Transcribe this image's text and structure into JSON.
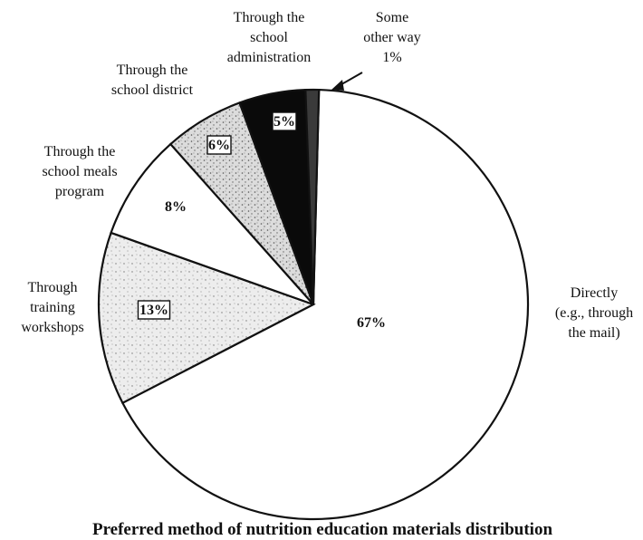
{
  "chart_data": {
    "type": "pie",
    "title": "Preferred method of nutrition education materials distribution",
    "slices": [
      {
        "label": [
          "Directly",
          "(e.g., through",
          "the mail)"
        ],
        "value": 67,
        "value_label": "67%",
        "fill": "#ffffff",
        "boxed": false
      },
      {
        "label": [
          "Through",
          "training",
          "workshops"
        ],
        "value": 13,
        "value_label": "13%",
        "fill": "#e6e6e6",
        "boxed": true
      },
      {
        "label": [
          "Through the",
          "school meals",
          "program"
        ],
        "value": 8,
        "value_label": "8%",
        "fill": "#ffffff",
        "boxed": false
      },
      {
        "label": [
          "Through the",
          "school district"
        ],
        "value": 6,
        "value_label": "6%",
        "fill": "#d0d0d0",
        "boxed": true
      },
      {
        "label": [
          "Through the",
          "school",
          "administration"
        ],
        "value": 5,
        "value_label": "5%",
        "fill": "#0a0a0a",
        "boxed": true
      },
      {
        "label": [
          "Some",
          "other way",
          "1%"
        ],
        "value": 1,
        "value_label": "",
        "fill": "#3a3a3a",
        "boxed": false
      }
    ]
  }
}
